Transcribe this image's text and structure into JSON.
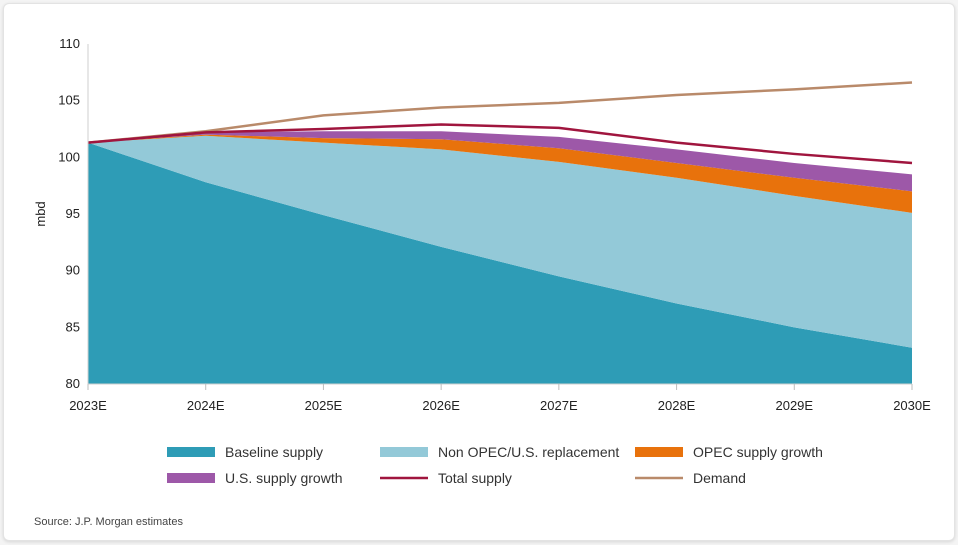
{
  "chart_data": {
    "type": "area",
    "title": "",
    "xlabel": "",
    "ylabel": "mbd",
    "ylim": [
      80,
      110
    ],
    "yticks": [
      80,
      85,
      90,
      95,
      100,
      105,
      110
    ],
    "categories": [
      "2023E",
      "2024E",
      "2025E",
      "2026E",
      "2027E",
      "2028E",
      "2029E",
      "2030E"
    ],
    "stacked_series": [
      {
        "name": "Baseline supply",
        "color": "#2e9cb6",
        "values": [
          101.3,
          97.8,
          94.9,
          92.1,
          89.5,
          87.1,
          85.0,
          83.2
        ]
      },
      {
        "name": "Non OPEC/U.S. replacement",
        "color": "#93c9d8",
        "values": [
          0.0,
          4.1,
          6.4,
          8.6,
          10.1,
          11.1,
          11.6,
          11.9
        ]
      },
      {
        "name": "OPEC supply growth",
        "color": "#e8720c",
        "values": [
          0.0,
          0.1,
          0.4,
          0.9,
          1.2,
          1.3,
          1.6,
          1.9
        ]
      },
      {
        "name": "U.S. supply growth",
        "color": "#9d58a8",
        "values": [
          0.0,
          0.2,
          0.6,
          0.7,
          1.0,
          1.2,
          1.3,
          1.5
        ]
      }
    ],
    "line_series": [
      {
        "name": "Total supply",
        "color": "#a0153e",
        "values": [
          101.3,
          102.2,
          102.5,
          102.9,
          102.6,
          101.3,
          100.3,
          99.5
        ]
      },
      {
        "name": "Demand",
        "color": "#b98a6a",
        "values": [
          101.3,
          102.3,
          103.7,
          104.4,
          104.8,
          105.5,
          106.0,
          106.6
        ]
      }
    ],
    "legend": [
      {
        "name": "Baseline supply",
        "kind": "swatch",
        "color": "#2e9cb6"
      },
      {
        "name": "Non OPEC/U.S. replacement",
        "kind": "swatch",
        "color": "#93c9d8"
      },
      {
        "name": "OPEC supply growth",
        "kind": "swatch",
        "color": "#e8720c"
      },
      {
        "name": "U.S. supply growth",
        "kind": "swatch",
        "color": "#9d58a8"
      },
      {
        "name": "Total supply",
        "kind": "line",
        "color": "#a0153e"
      },
      {
        "name": "Demand",
        "kind": "line",
        "color": "#b98a6a"
      }
    ],
    "legend_placement": "bottom",
    "grid": false,
    "source": "Source: J.P. Morgan estimates"
  }
}
